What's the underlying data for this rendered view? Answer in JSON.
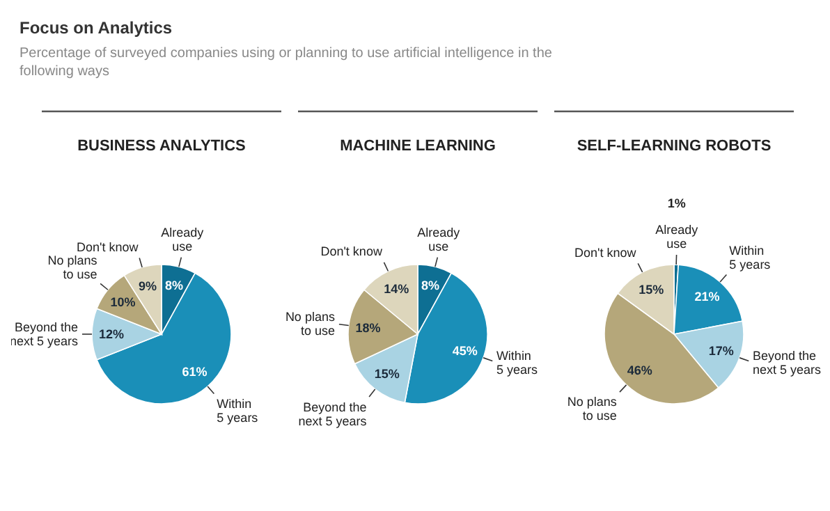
{
  "chart_data": [
    {
      "type": "pie",
      "title": "BUSINESS ANALYTICS",
      "annotations": [
        "Focus on Analytics",
        "Percentage of surveyed companies using or planning to use artificial intelligence in the following ways"
      ],
      "categories": [
        "Already use",
        "Within 5 years",
        "Beyond the next 5 years",
        "No plans to use",
        "Don't know"
      ],
      "values": [
        8,
        61,
        12,
        10,
        9
      ],
      "value_labels": [
        "8%",
        "61%",
        "12%",
        "10%",
        "9%"
      ],
      "colors": [
        "#0e6f93",
        "#1a8fb8",
        "#a9d3e3",
        "#b5a77a",
        "#ddd6bc"
      ]
    },
    {
      "type": "pie",
      "title": "MACHINE LEARNING",
      "categories": [
        "Already use",
        "Within 5 years",
        "Beyond the next 5 years",
        "No plans to use",
        "Don't know"
      ],
      "values": [
        8,
        45,
        15,
        18,
        14
      ],
      "value_labels": [
        "8%",
        "45%",
        "15%",
        "18%",
        "14%"
      ],
      "colors": [
        "#0e6f93",
        "#1a8fb8",
        "#a9d3e3",
        "#b5a77a",
        "#ddd6bc"
      ]
    },
    {
      "type": "pie",
      "title": "SELF-LEARNING ROBOTS",
      "categories": [
        "Already use",
        "Within 5 years",
        "Beyond the next 5 years",
        "No plans to use",
        "Don't know"
      ],
      "values": [
        1,
        21,
        17,
        46,
        15
      ],
      "value_labels": [
        "1%",
        "21%",
        "17%",
        "46%",
        "15%"
      ],
      "colors": [
        "#0e6f93",
        "#1a8fb8",
        "#a9d3e3",
        "#b5a77a",
        "#ddd6bc"
      ]
    }
  ]
}
